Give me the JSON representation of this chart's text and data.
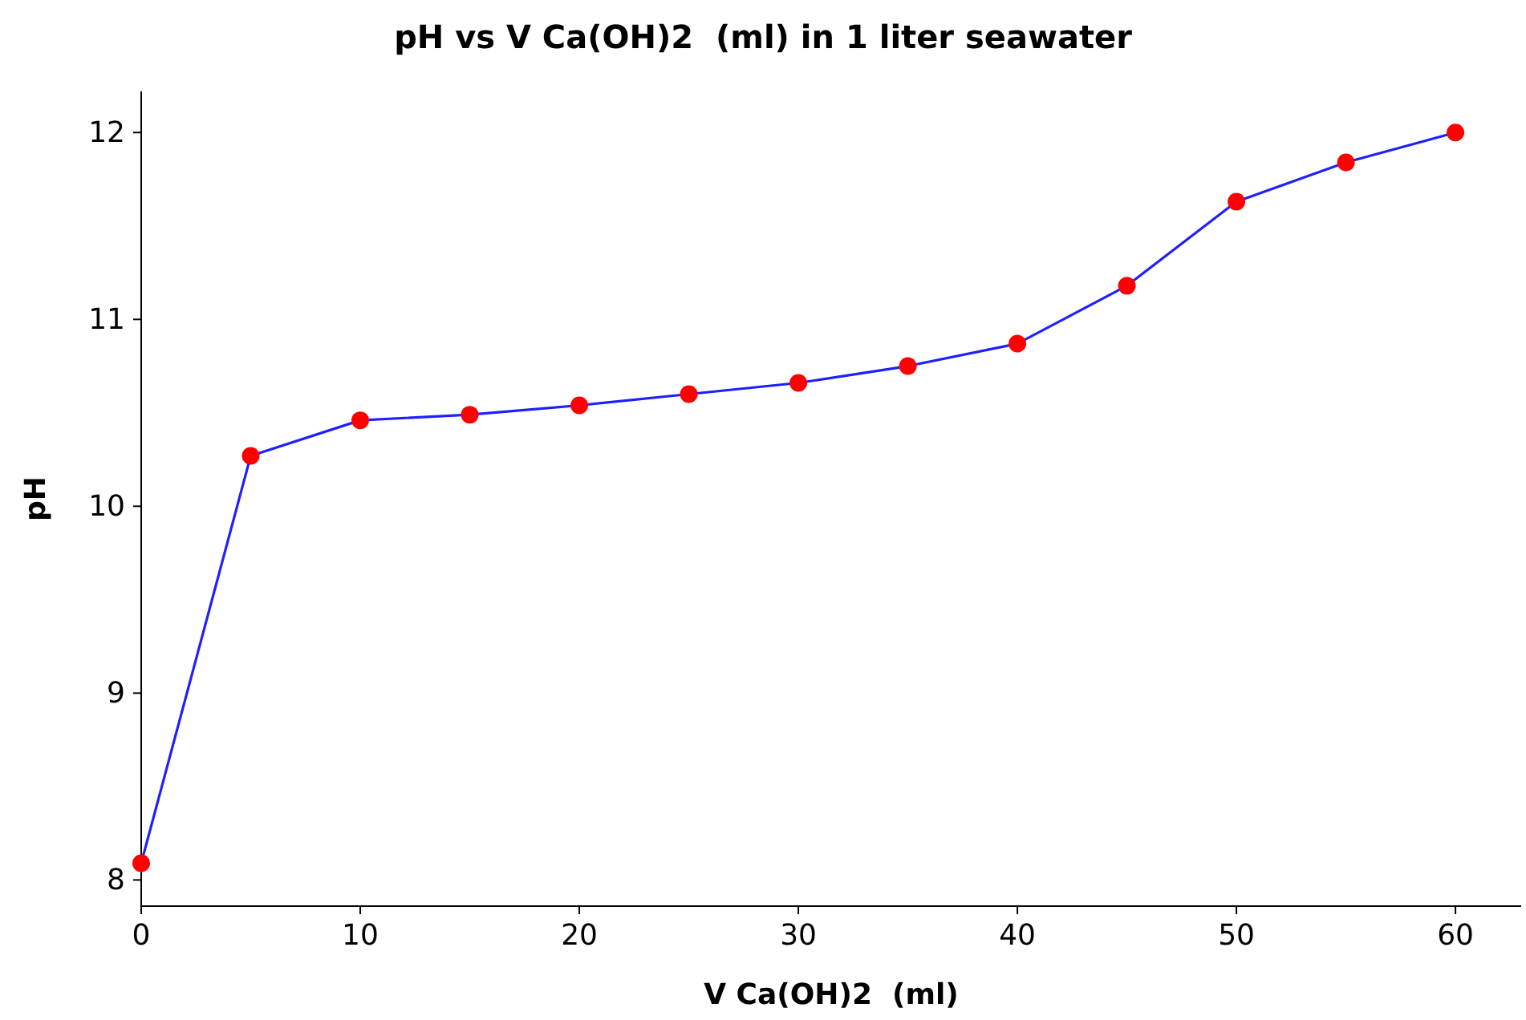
{
  "chart_data": {
    "type": "line",
    "title": "pH vs V Ca(OH)2  (ml) in 1 liter seawater",
    "xlabel": "V Ca(OH)2  (ml)",
    "ylabel": "pH",
    "x": [
      0,
      5,
      10,
      15,
      20,
      25,
      30,
      35,
      40,
      45,
      50,
      55,
      60
    ],
    "series": [
      {
        "color": "#1f1fff",
        "values": [
          8.09,
          10.27,
          10.46,
          10.49,
          10.54,
          10.6,
          10.66,
          10.75,
          10.87,
          11.18,
          11.63,
          11.84,
          12.0
        ]
      }
    ],
    "marker": "circle",
    "line_style": "solid",
    "xlim": [
      0,
      63
    ],
    "ylim": [
      7.86,
      12.22
    ],
    "xticks": [
      0,
      10,
      20,
      30,
      40,
      50,
      60
    ],
    "yticks": [
      8,
      9,
      10,
      11,
      12
    ]
  }
}
